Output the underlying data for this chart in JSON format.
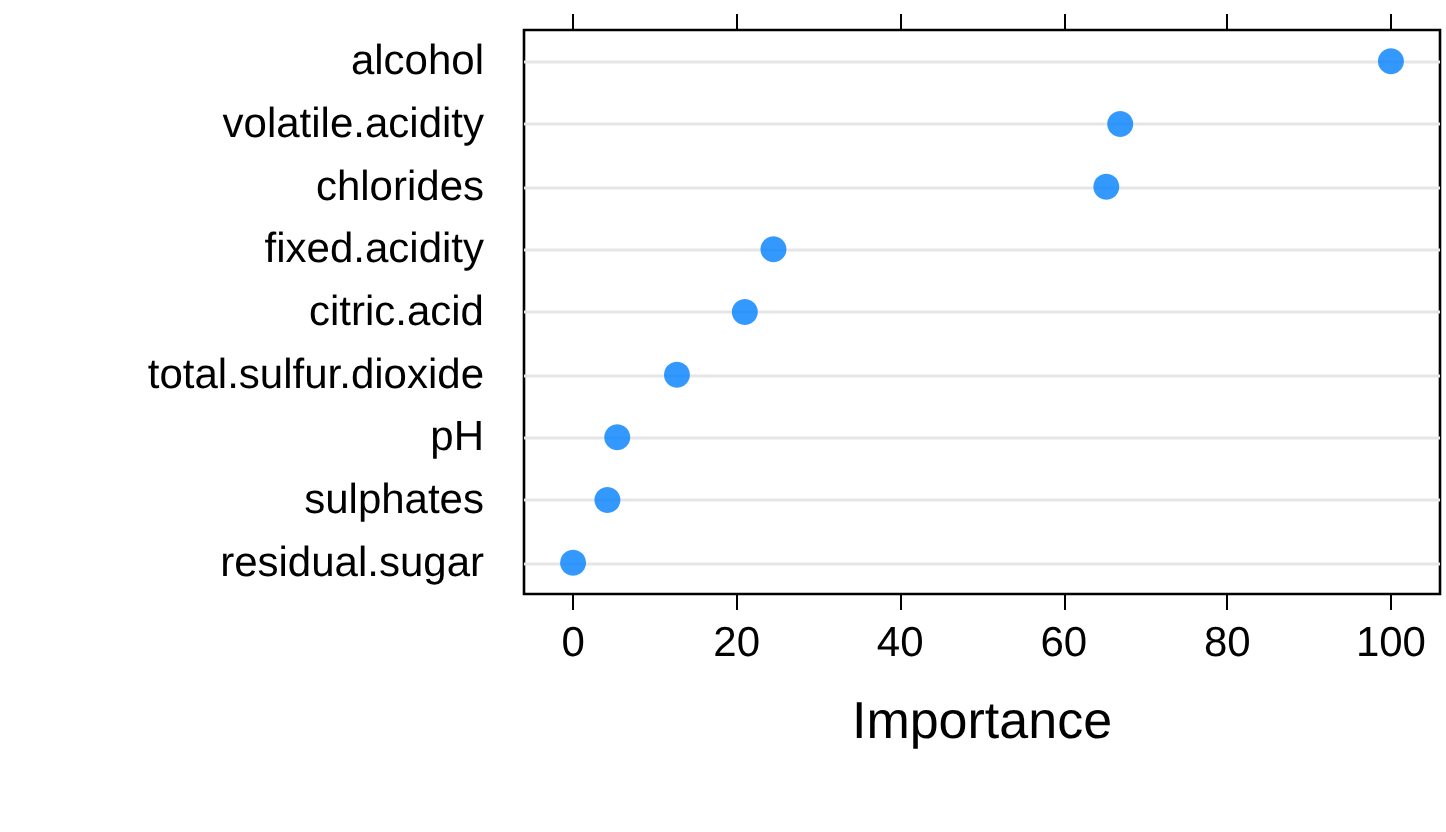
{
  "chart_data": {
    "type": "scatter",
    "orientation": "horizontal",
    "xlabel": "Importance",
    "categories": [
      "alcohol",
      "volatile.acidity",
      "chlorides",
      "fixed.acidity",
      "citric.acid",
      "total.sulfur.dioxide",
      "pH",
      "sulphates",
      "residual.sugar"
    ],
    "values": [
      100,
      66.9,
      65.2,
      24.5,
      21,
      12.7,
      5.4,
      4.2,
      0
    ],
    "color": "#0080ff",
    "xlim": [
      -6,
      106
    ],
    "xticks": [
      0,
      20,
      40,
      60,
      80,
      100
    ],
    "grid": "y",
    "marker": "circle"
  }
}
